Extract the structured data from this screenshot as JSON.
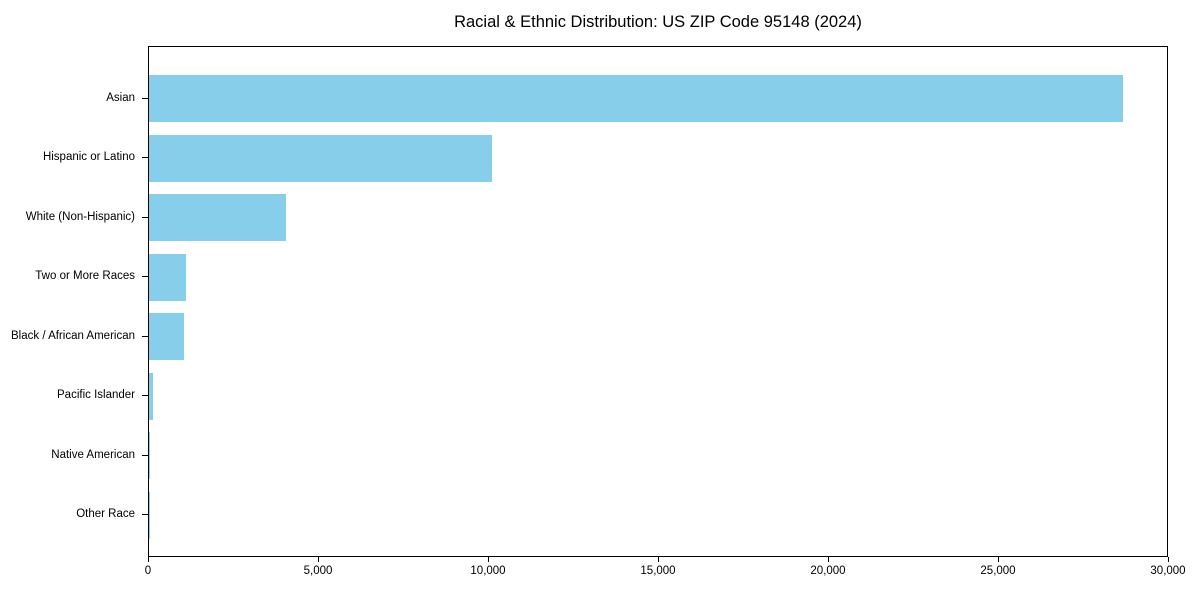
{
  "chart_data": {
    "type": "bar",
    "orientation": "horizontal",
    "title": "Racial & Ethnic Distribution: US ZIP Code 95148 (2024)",
    "categories": [
      "Asian",
      "Hispanic or Latino",
      "White (Non-Hispanic)",
      "Two or More Races",
      "Black / African American",
      "Pacific Islander",
      "Native American",
      "Other Race"
    ],
    "values": [
      28700,
      10100,
      4050,
      1100,
      1040,
      130,
      40,
      10
    ],
    "xlabel": "",
    "ylabel": "",
    "xlim": [
      0,
      30000
    ],
    "x_ticks": [
      0,
      5000,
      10000,
      15000,
      20000,
      25000,
      30000
    ],
    "x_tick_labels": [
      "0",
      "5,000",
      "10,000",
      "15,000",
      "20,000",
      "25,000",
      "30,000"
    ],
    "bar_color": "#87ceeb",
    "background_color": "#ffffff",
    "spine_color": "#000000",
    "grid": false,
    "legend": null
  }
}
